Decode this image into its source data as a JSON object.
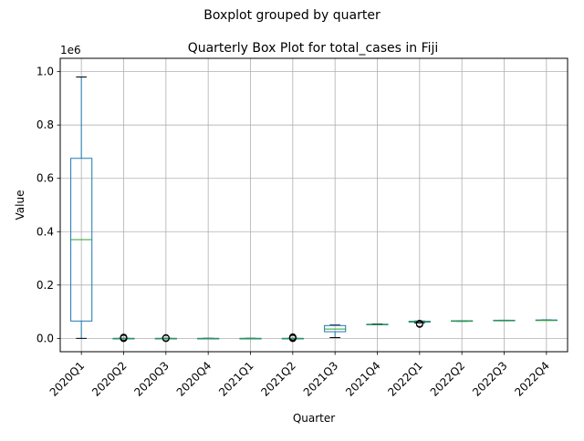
{
  "suptitle": "Boxplot grouped by quarter",
  "chart_data": {
    "type": "box",
    "title": "Quarterly Box Plot for total_cases in Fiji",
    "xlabel": "Quarter",
    "ylabel": "Value",
    "y_offset_label": "1e6",
    "ylim": [
      -0.05,
      1.05
    ],
    "yticks": [
      0.0,
      0.2,
      0.4,
      0.6,
      0.8,
      1.0
    ],
    "ytick_labels": [
      "0.0",
      "0.2",
      "0.4",
      "0.6",
      "0.8",
      "1.0"
    ],
    "grid": true,
    "categories": [
      "2020Q1",
      "2020Q2",
      "2020Q3",
      "2020Q4",
      "2021Q1",
      "2021Q2",
      "2021Q3",
      "2021Q4",
      "2022Q1",
      "2022Q2",
      "2022Q3",
      "2022Q4"
    ],
    "boxes": [
      {
        "whislo": 0.0,
        "q1": 0.065,
        "med": 0.37,
        "q3": 0.675,
        "whishi": 0.98,
        "fliers": []
      },
      {
        "whislo": 0.0,
        "q1": 0.0,
        "med": 0.0,
        "q3": 0.0,
        "whishi": 0.0,
        "fliers": [
          0.0,
          0.002,
          0.004
        ]
      },
      {
        "whislo": 0.0,
        "q1": 0.0,
        "med": 0.0,
        "q3": 0.0,
        "whishi": 0.0,
        "fliers": [
          0.0,
          0.002
        ]
      },
      {
        "whislo": 0.0,
        "q1": 0.0,
        "med": 0.0,
        "q3": 0.0,
        "whishi": 0.0,
        "fliers": []
      },
      {
        "whislo": 0.0,
        "q1": 0.0,
        "med": 0.0,
        "q3": 0.0,
        "whishi": 0.0,
        "fliers": []
      },
      {
        "whislo": 0.0,
        "q1": 0.0,
        "med": 0.0,
        "q3": 0.0,
        "whishi": 0.0,
        "fliers": [
          0.0,
          0.002,
          0.005
        ]
      },
      {
        "whislo": 0.003,
        "q1": 0.025,
        "med": 0.035,
        "q3": 0.048,
        "whishi": 0.05,
        "fliers": []
      },
      {
        "whislo": 0.051,
        "q1": 0.051,
        "med": 0.052,
        "q3": 0.053,
        "whishi": 0.054,
        "fliers": []
      },
      {
        "whislo": 0.058,
        "q1": 0.061,
        "med": 0.063,
        "q3": 0.064,
        "whishi": 0.065,
        "fliers": [
          0.053,
          0.056
        ]
      },
      {
        "whislo": 0.064,
        "q1": 0.065,
        "med": 0.065,
        "q3": 0.066,
        "whishi": 0.066,
        "fliers": []
      },
      {
        "whislo": 0.066,
        "q1": 0.067,
        "med": 0.067,
        "q3": 0.068,
        "whishi": 0.068,
        "fliers": []
      },
      {
        "whislo": 0.068,
        "q1": 0.068,
        "med": 0.068,
        "q3": 0.069,
        "whishi": 0.069,
        "fliers": []
      }
    ],
    "colors": {
      "box": "#1f77b4",
      "median": "#2ca02c",
      "grid": "#b0b0b0",
      "flier": "#000000"
    }
  }
}
